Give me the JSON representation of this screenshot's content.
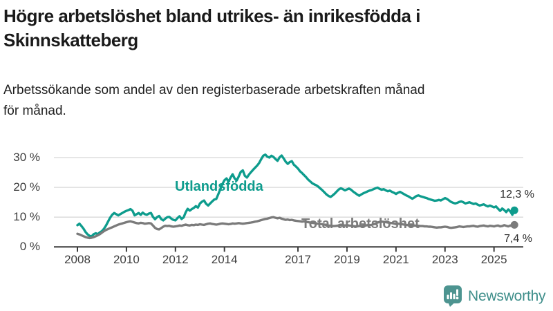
{
  "header": {
    "title_line1": "Högre arbetslöshet bland utrikes- än inrikesfödda i",
    "title_line2": "Skinnskatteberg",
    "subtitle_line1": "Arbetssökande som andel av den registerbaserade arbetskraften månad",
    "subtitle_line2": "för månad."
  },
  "chart_data": {
    "type": "line",
    "title": "Högre arbetslöshet bland utrikes- än inrikesfödda i Skinnskatteberg",
    "subtitle": "Arbetssökande som andel av den registerbaserade arbetskraften månad för månad.",
    "unit": "%",
    "grid": true,
    "ylim": [
      0,
      33
    ],
    "x_start_year": 2008,
    "points_per_year": 12,
    "x_ticks": [
      {
        "year": 2008,
        "label": "2008"
      },
      {
        "year": 2010,
        "label": "2010"
      },
      {
        "year": 2012,
        "label": "2012"
      },
      {
        "year": 2014,
        "label": "2014"
      },
      {
        "year": 2017,
        "label": "2017"
      },
      {
        "year": 2019,
        "label": "2019"
      },
      {
        "year": 2021,
        "label": "2021"
      },
      {
        "year": 2023,
        "label": "2023"
      },
      {
        "year": 2025,
        "label": "2025"
      }
    ],
    "y_ticks": [
      {
        "value": 0,
        "label": "0 %"
      },
      {
        "value": 10,
        "label": "10 %"
      },
      {
        "value": 20,
        "label": "20 %"
      },
      {
        "value": 30,
        "label": "30 %"
      }
    ],
    "series": [
      {
        "name": "Utlandsfödda",
        "color": "#0e9c8d",
        "end_label": "12,3 %",
        "end_value": 12.3,
        "values": [
          7.3,
          7.8,
          7.0,
          6.1,
          5.0,
          4.2,
          3.7,
          3.6,
          4.3,
          4.6,
          4.3,
          4.9,
          5.3,
          6.1,
          7.2,
          8.5,
          9.8,
          10.8,
          11.4,
          11.0,
          10.6,
          11.0,
          11.4,
          11.8,
          12.1,
          12.4,
          12.7,
          12.1,
          10.6,
          11.0,
          11.4,
          10.8,
          11.5,
          11.0,
          10.8,
          11.2,
          11.4,
          10.1,
          9.3,
          10.0,
          10.4,
          9.4,
          8.9,
          9.5,
          10.0,
          10.1,
          9.5,
          9.1,
          8.9,
          9.7,
          10.3,
          9.4,
          9.9,
          11.6,
          12.8,
          12.2,
          12.7,
          13.1,
          13.7,
          13.2,
          14.6,
          15.2,
          15.6,
          14.5,
          13.9,
          14.6,
          15.3,
          15.9,
          16.1,
          17.7,
          19.4,
          21.1,
          22.4,
          23.0,
          21.9,
          23.3,
          24.4,
          23.0,
          22.3,
          23.7,
          25.2,
          25.7,
          23.9,
          23.3,
          24.3,
          25.1,
          25.9,
          26.6,
          27.3,
          28.2,
          29.5,
          30.6,
          31.0,
          30.3,
          30.0,
          30.6,
          30.2,
          29.5,
          28.9,
          30.1,
          30.7,
          29.7,
          28.6,
          27.9,
          28.5,
          28.8,
          27.6,
          27.0,
          26.3,
          25.4,
          24.8,
          24.1,
          23.4,
          22.6,
          22.0,
          21.4,
          21.0,
          20.7,
          20.2,
          19.6,
          19.0,
          18.3,
          17.6,
          17.1,
          16.8,
          17.3,
          17.9,
          18.6,
          19.3,
          19.7,
          19.4,
          19.0,
          19.3,
          19.6,
          19.2,
          18.6,
          18.1,
          17.6,
          17.2,
          17.6,
          18.0,
          18.3,
          18.6,
          18.9,
          19.1,
          19.4,
          19.7,
          19.9,
          19.5,
          19.2,
          19.4,
          19.0,
          18.7,
          18.9,
          18.5,
          18.2,
          17.8,
          18.2,
          18.5,
          18.1,
          17.7,
          17.3,
          17.0,
          16.6,
          16.2,
          16.6,
          17.1,
          17.3,
          17.0,
          16.8,
          16.6,
          16.4,
          16.1,
          15.9,
          15.7,
          15.5,
          15.6,
          15.8,
          15.6,
          16.0,
          16.4,
          16.1,
          15.6,
          15.1,
          14.8,
          14.6,
          14.8,
          15.1,
          15.3,
          15.0,
          14.6,
          14.8,
          15.0,
          14.7,
          14.4,
          14.6,
          14.2,
          13.9,
          14.1,
          14.3,
          13.9,
          13.6,
          13.9,
          13.6,
          13.3,
          13.6,
          12.8,
          12.1,
          12.9,
          12.4,
          11.7,
          12.6,
          11.9,
          10.8,
          12.3
        ]
      },
      {
        "name": "Total arbetslöshet",
        "color": "#7b7b7b",
        "end_label": "7,4 %",
        "end_value": 7.4,
        "values": [
          4.4,
          4.2,
          3.9,
          3.6,
          3.3,
          3.1,
          3.0,
          3.1,
          3.3,
          3.6,
          3.9,
          4.3,
          4.8,
          5.3,
          5.7,
          6.0,
          6.3,
          6.6,
          6.9,
          7.2,
          7.5,
          7.7,
          7.9,
          8.1,
          8.3,
          8.5,
          8.6,
          8.4,
          8.2,
          8.0,
          7.9,
          8.1,
          8.0,
          7.8,
          7.9,
          8.0,
          7.9,
          7.2,
          6.4,
          6.0,
          5.9,
          6.3,
          6.8,
          7.1,
          7.0,
          7.1,
          6.9,
          6.8,
          6.9,
          7.0,
          7.2,
          7.1,
          7.3,
          7.5,
          7.3,
          7.2,
          7.4,
          7.3,
          7.5,
          7.4,
          7.6,
          7.5,
          7.4,
          7.6,
          7.8,
          7.9,
          7.7,
          7.6,
          7.5,
          7.6,
          7.8,
          7.9,
          7.8,
          7.7,
          7.6,
          7.7,
          7.9,
          7.8,
          7.9,
          8.0,
          7.9,
          7.8,
          7.9,
          8.0,
          8.1,
          8.2,
          8.3,
          8.5,
          8.6,
          8.8,
          9.0,
          9.2,
          9.4,
          9.5,
          9.7,
          9.9,
          10.0,
          9.8,
          9.6,
          9.8,
          9.5,
          9.3,
          9.1,
          9.2,
          9.0,
          9.1,
          8.9,
          8.8,
          8.7,
          8.6,
          8.5,
          8.6,
          8.4,
          8.3,
          8.2,
          8.1,
          8.0,
          7.9,
          7.8,
          7.7,
          7.6,
          7.5,
          7.3,
          7.2,
          7.1,
          7.0,
          7.0,
          7.1,
          7.2,
          7.3,
          7.3,
          7.2,
          7.3,
          7.2,
          7.1,
          7.0,
          6.9,
          6.9,
          7.0,
          7.0,
          7.1,
          7.2,
          7.3,
          7.3,
          7.4,
          7.6,
          7.9,
          8.2,
          8.4,
          8.5,
          8.4,
          8.3,
          8.2,
          8.1,
          8.0,
          7.9,
          7.9,
          7.8,
          7.7,
          7.6,
          7.5,
          7.4,
          7.3,
          7.2,
          7.1,
          7.2,
          7.1,
          7.1,
          7.0,
          7.0,
          6.9,
          6.9,
          6.8,
          6.8,
          6.7,
          6.6,
          6.5,
          6.6,
          6.6,
          6.7,
          6.8,
          6.7,
          6.5,
          6.4,
          6.5,
          6.6,
          6.7,
          6.9,
          6.8,
          6.7,
          6.8,
          6.9,
          6.9,
          7.0,
          7.1,
          6.9,
          6.8,
          7.0,
          7.1,
          7.2,
          7.0,
          6.9,
          7.1,
          7.0,
          6.9,
          7.1,
          7.2,
          6.9,
          7.0,
          7.3,
          7.1,
          6.9,
          7.2,
          7.0,
          7.4
        ]
      }
    ]
  },
  "colors": {
    "grid": "#d8d8d8",
    "axis": "#3a3a3a",
    "tick_text": "#3d3d3d"
  },
  "logo": {
    "text": "Newsworthy",
    "icon": "newsworthy-bubble-chart-icon",
    "icon_color": "#4d9490",
    "text_color": "#3e8e8a"
  }
}
